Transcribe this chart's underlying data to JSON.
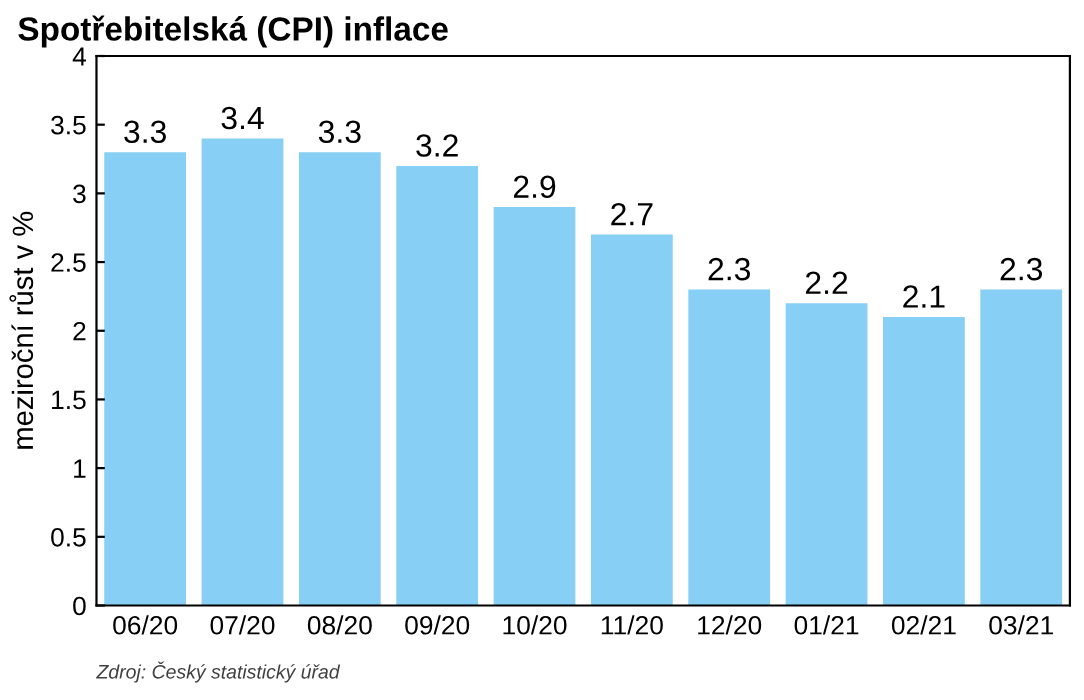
{
  "chart_data": {
    "type": "bar",
    "title": "Spotřebitelská (CPI) inflace",
    "ylabel": "meziroční růst v %",
    "categories": [
      "06/20",
      "07/20",
      "08/20",
      "09/20",
      "10/20",
      "11/20",
      "12/20",
      "01/21",
      "02/21",
      "03/21"
    ],
    "values": [
      3.3,
      3.4,
      3.3,
      3.2,
      2.9,
      2.7,
      2.3,
      2.2,
      2.1,
      2.3
    ],
    "color": "#87cff5",
    "ylim": [
      0,
      4
    ],
    "yticks": [
      0,
      0.5,
      1,
      1.5,
      2,
      2.5,
      3,
      3.5,
      4
    ],
    "data_labels": true,
    "grid": false,
    "legend": false,
    "annotations": [
      "Zdroj: Český statistický úřad"
    ]
  }
}
